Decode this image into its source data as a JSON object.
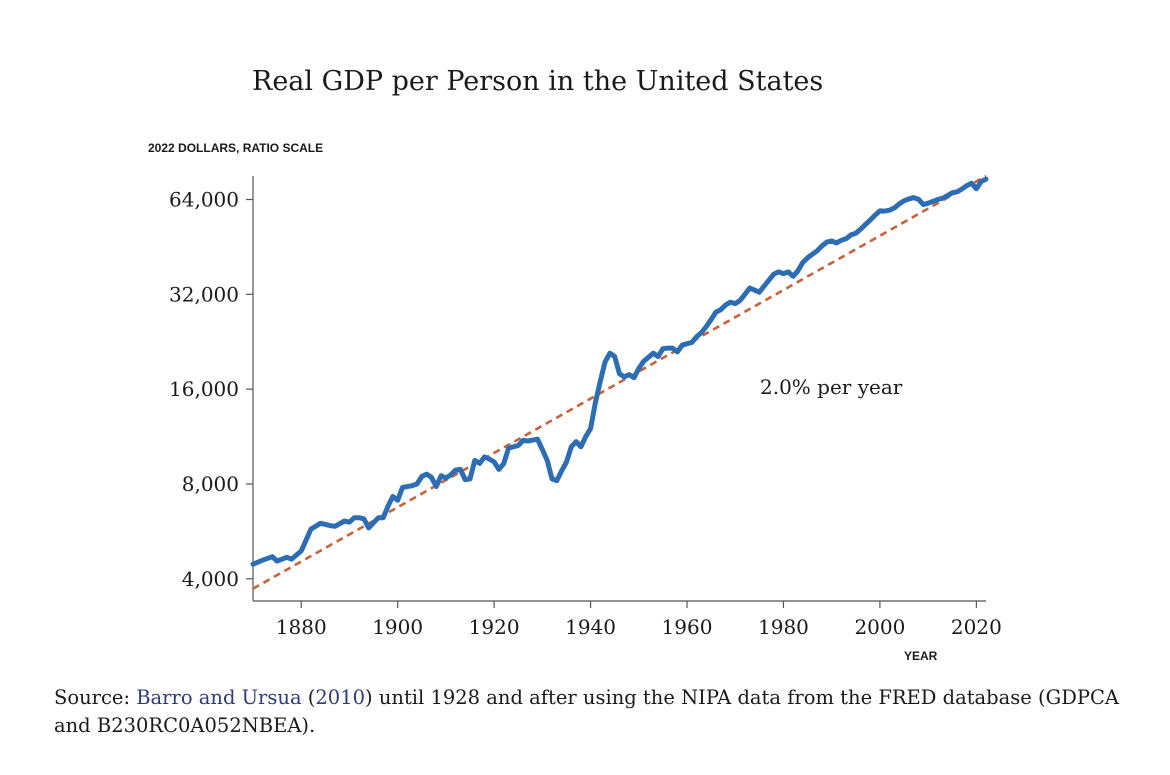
{
  "chart_data": {
    "type": "line",
    "title": "Real GDP per Person in the United States",
    "ylabel": "2022 DOLLARS, RATIO SCALE",
    "xlabel": "YEAR",
    "yscale": "log2",
    "xlim": [
      1870,
      2022
    ],
    "ylim": [
      3400,
      76000
    ],
    "x_ticks": [
      1880,
      1900,
      1920,
      1940,
      1960,
      1980,
      2000,
      2020
    ],
    "y_ticks": [
      4000,
      8000,
      16000,
      32000,
      64000
    ],
    "y_tick_labels": [
      "4,000",
      "8,000",
      "16,000",
      "32,000",
      "64,000"
    ],
    "grid": false,
    "annotation": "2.0% per year",
    "series": [
      {
        "color": "#2c6db4",
        "points": [
          [
            1870,
            4450
          ],
          [
            1872,
            4580
          ],
          [
            1874,
            4700
          ],
          [
            1875,
            4550
          ],
          [
            1877,
            4680
          ],
          [
            1878,
            4620
          ],
          [
            1880,
            4900
          ],
          [
            1881,
            5300
          ],
          [
            1882,
            5750
          ],
          [
            1884,
            6000
          ],
          [
            1886,
            5900
          ],
          [
            1887,
            5870
          ],
          [
            1889,
            6100
          ],
          [
            1890,
            6050
          ],
          [
            1891,
            6250
          ],
          [
            1892,
            6250
          ],
          [
            1893,
            6200
          ],
          [
            1894,
            5800
          ],
          [
            1896,
            6250
          ],
          [
            1897,
            6250
          ],
          [
            1898,
            6800
          ],
          [
            1899,
            7300
          ],
          [
            1900,
            7100
          ],
          [
            1901,
            7800
          ],
          [
            1903,
            7900
          ],
          [
            1904,
            8000
          ],
          [
            1905,
            8450
          ],
          [
            1906,
            8600
          ],
          [
            1907,
            8400
          ],
          [
            1908,
            7850
          ],
          [
            1909,
            8500
          ],
          [
            1910,
            8350
          ],
          [
            1911,
            8550
          ],
          [
            1912,
            8850
          ],
          [
            1913,
            8900
          ],
          [
            1914,
            8250
          ],
          [
            1915,
            8300
          ],
          [
            1916,
            9500
          ],
          [
            1917,
            9300
          ],
          [
            1918,
            9750
          ],
          [
            1919,
            9600
          ],
          [
            1920,
            9400
          ],
          [
            1921,
            8900
          ],
          [
            1922,
            9300
          ],
          [
            1923,
            10400
          ],
          [
            1925,
            10600
          ],
          [
            1926,
            11000
          ],
          [
            1927,
            10950
          ],
          [
            1929,
            11100
          ],
          [
            1930,
            10300
          ],
          [
            1931,
            9500
          ],
          [
            1932,
            8300
          ],
          [
            1933,
            8200
          ],
          [
            1934,
            8800
          ],
          [
            1935,
            9400
          ],
          [
            1936,
            10500
          ],
          [
            1937,
            10900
          ],
          [
            1938,
            10500
          ],
          [
            1939,
            11300
          ],
          [
            1940,
            12000
          ],
          [
            1941,
            14500
          ],
          [
            1942,
            16900
          ],
          [
            1943,
            19500
          ],
          [
            1944,
            20800
          ],
          [
            1945,
            20300
          ],
          [
            1946,
            17900
          ],
          [
            1947,
            17500
          ],
          [
            1948,
            17800
          ],
          [
            1949,
            17400
          ],
          [
            1950,
            18600
          ],
          [
            1951,
            19600
          ],
          [
            1952,
            20200
          ],
          [
            1953,
            20800
          ],
          [
            1954,
            20300
          ],
          [
            1955,
            21500
          ],
          [
            1956,
            21600
          ],
          [
            1957,
            21600
          ],
          [
            1958,
            21000
          ],
          [
            1959,
            22100
          ],
          [
            1960,
            22300
          ],
          [
            1961,
            22500
          ],
          [
            1962,
            23500
          ],
          [
            1963,
            24200
          ],
          [
            1964,
            25300
          ],
          [
            1965,
            26600
          ],
          [
            1966,
            28100
          ],
          [
            1967,
            28600
          ],
          [
            1968,
            29600
          ],
          [
            1969,
            30200
          ],
          [
            1970,
            29900
          ],
          [
            1971,
            30600
          ],
          [
            1972,
            32000
          ],
          [
            1973,
            33500
          ],
          [
            1974,
            33000
          ],
          [
            1975,
            32500
          ],
          [
            1976,
            34000
          ],
          [
            1977,
            35500
          ],
          [
            1978,
            37100
          ],
          [
            1979,
            37700
          ],
          [
            1980,
            37200
          ],
          [
            1981,
            37700
          ],
          [
            1982,
            36500
          ],
          [
            1983,
            38000
          ],
          [
            1984,
            40400
          ],
          [
            1985,
            41800
          ],
          [
            1986,
            42900
          ],
          [
            1987,
            44000
          ],
          [
            1988,
            45600
          ],
          [
            1989,
            46900
          ],
          [
            1990,
            47300
          ],
          [
            1991,
            46600
          ],
          [
            1992,
            47500
          ],
          [
            1993,
            48100
          ],
          [
            1994,
            49400
          ],
          [
            1995,
            50000
          ],
          [
            1996,
            51500
          ],
          [
            1997,
            53300
          ],
          [
            1998,
            55100
          ],
          [
            1999,
            57100
          ],
          [
            2000,
            58900
          ],
          [
            2001,
            58800
          ],
          [
            2002,
            59200
          ],
          [
            2003,
            60200
          ],
          [
            2004,
            62000
          ],
          [
            2005,
            63400
          ],
          [
            2006,
            64300
          ],
          [
            2007,
            64900
          ],
          [
            2008,
            64100
          ],
          [
            2009,
            61700
          ],
          [
            2010,
            62300
          ],
          [
            2011,
            63100
          ],
          [
            2012,
            64000
          ],
          [
            2013,
            64600
          ],
          [
            2014,
            65800
          ],
          [
            2015,
            67200
          ],
          [
            2016,
            67700
          ],
          [
            2017,
            69100
          ],
          [
            2018,
            70800
          ],
          [
            2019,
            72100
          ],
          [
            2020,
            69200
          ],
          [
            2021,
            73000
          ],
          [
            2022,
            74300
          ]
        ]
      },
      {
        "color": "#c8623b",
        "style": "dashed",
        "points": [
          [
            1870,
            3720
          ],
          [
            2022,
            76000
          ]
        ]
      }
    ]
  },
  "source": {
    "prefix": "Source: ",
    "ref_authors": "Barro and Ursua",
    "ref_open": " (",
    "ref_year": "2010",
    "ref_close": ")",
    "suffix": " until 1928 and after using the NIPA data from the FRED database (GDPCA and B230RC0A052NBEA)."
  }
}
